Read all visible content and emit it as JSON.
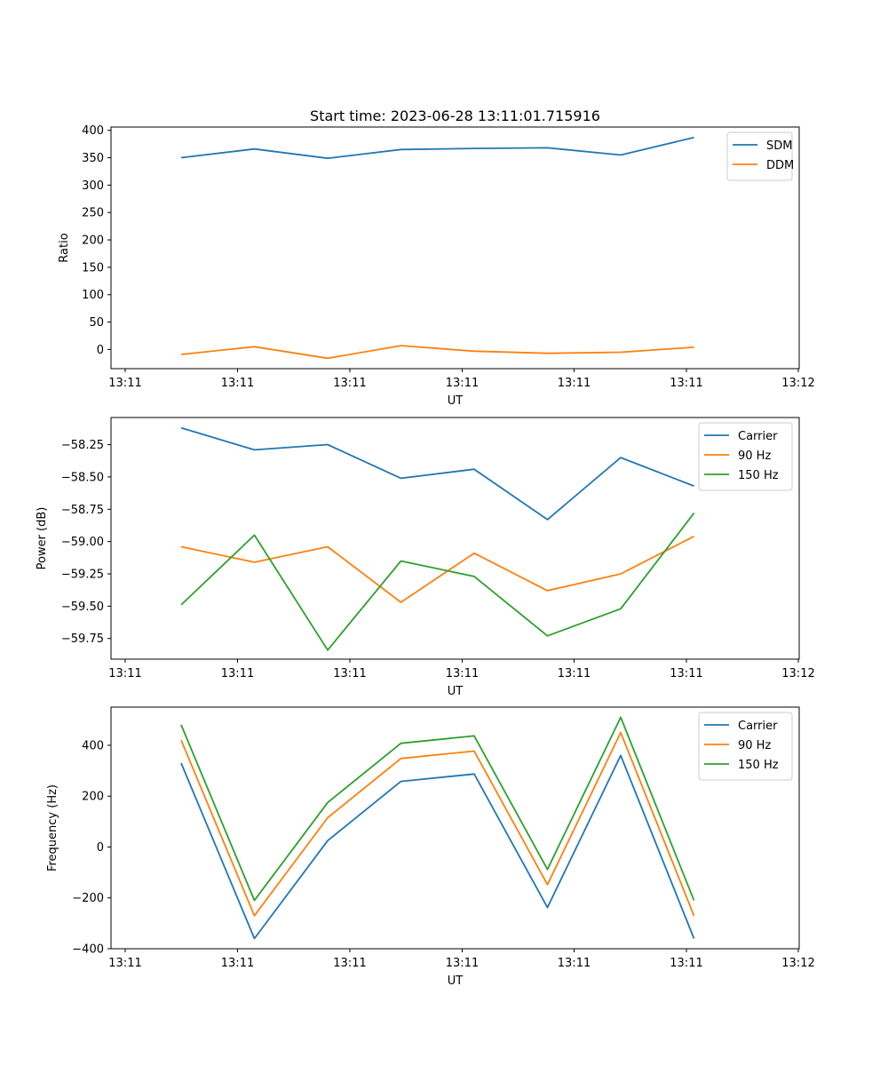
{
  "title": "Start time: 2023-06-28 13:11:01.715916",
  "x_tick_labels": [
    "13:11",
    "13:11",
    "13:11",
    "13:11",
    "13:11",
    "13:11",
    "13:12"
  ],
  "colors": {
    "blue": "#1f77b4",
    "orange": "#ff7f0e",
    "green": "#2ca02c"
  },
  "chart_data": [
    {
      "type": "line",
      "xlabel": "UT",
      "ylabel": "Ratio",
      "ylim": [
        -35,
        406
      ],
      "yticks": [
        0,
        50,
        100,
        150,
        200,
        250,
        300,
        350,
        400
      ],
      "ytick_labels": [
        "0",
        "50",
        "100",
        "150",
        "200",
        "250",
        "300",
        "350",
        "400"
      ],
      "legend": "top-right",
      "grid": false,
      "series": [
        {
          "name": "SDM",
          "color": "#1f77b4",
          "values": [
            350,
            366,
            349,
            365,
            367,
            368,
            355,
            387
          ]
        },
        {
          "name": "DDM",
          "color": "#ff7f0e",
          "values": [
            -9,
            5,
            -16,
            7,
            -3,
            -7,
            -5,
            4
          ]
        }
      ]
    },
    {
      "type": "line",
      "xlabel": "UT",
      "ylabel": "Power (dB)",
      "ylim": [
        -59.91,
        -58.04
      ],
      "yticks": [
        -59.75,
        -59.5,
        -59.25,
        -59.0,
        -58.75,
        -58.5,
        -58.25
      ],
      "ytick_labels": [
        "−59.75",
        "−59.50",
        "−59.25",
        "−59.00",
        "−58.75",
        "−58.50",
        "−58.25"
      ],
      "legend": "top-right",
      "grid": false,
      "series": [
        {
          "name": "Carrier",
          "color": "#1f77b4",
          "values": [
            -58.12,
            -58.29,
            -58.25,
            -58.51,
            -58.44,
            -58.83,
            -58.35,
            -58.57
          ]
        },
        {
          "name": "90 Hz",
          "color": "#ff7f0e",
          "values": [
            -59.04,
            -59.16,
            -59.04,
            -59.47,
            -59.09,
            -59.38,
            -59.25,
            -58.96
          ]
        },
        {
          "name": "150 Hz",
          "color": "#2ca02c",
          "values": [
            -59.49,
            -58.95,
            -59.84,
            -59.15,
            -59.27,
            -59.73,
            -59.52,
            -58.78
          ]
        }
      ]
    },
    {
      "type": "line",
      "xlabel": "UT",
      "ylabel": "Frequency (Hz)",
      "ylim": [
        -400,
        550
      ],
      "yticks": [
        -400,
        -200,
        0,
        200,
        400
      ],
      "ytick_labels": [
        "−400",
        "−200",
        "0",
        "200",
        "400"
      ],
      "legend": "top-right",
      "grid": false,
      "series": [
        {
          "name": "Carrier",
          "color": "#1f77b4",
          "values": [
            330,
            -360,
            25,
            258,
            287,
            -238,
            360,
            -360
          ]
        },
        {
          "name": "90 Hz",
          "color": "#ff7f0e",
          "values": [
            420,
            -270,
            115,
            348,
            377,
            -148,
            450,
            -270
          ]
        },
        {
          "name": "150 Hz",
          "color": "#2ca02c",
          "values": [
            480,
            -210,
            175,
            408,
            437,
            -88,
            510,
            -210
          ]
        }
      ]
    }
  ]
}
